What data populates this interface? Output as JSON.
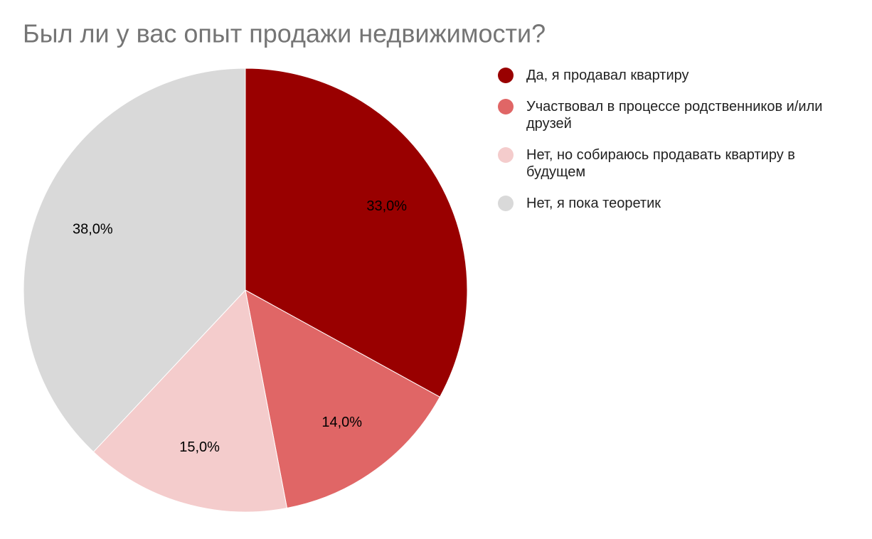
{
  "chart_data": {
    "type": "pie",
    "title": "Был ли у вас опыт продажи недвижимости?",
    "categories": [
      "Да, я продавал квартиру",
      "Участвовал в процессе родственников и/или друзей",
      "Нет, но собираюсь продавать квартиру в будущем",
      "Нет, я пока теоретик"
    ],
    "values": [
      33,
      14,
      15,
      38
    ],
    "value_labels": [
      "33,0%",
      "14,0%",
      "15,0%",
      "38,0%"
    ],
    "colors": [
      "#990000",
      "#e06666",
      "#f4cccc",
      "#d9d9d9"
    ],
    "legend": "right"
  }
}
